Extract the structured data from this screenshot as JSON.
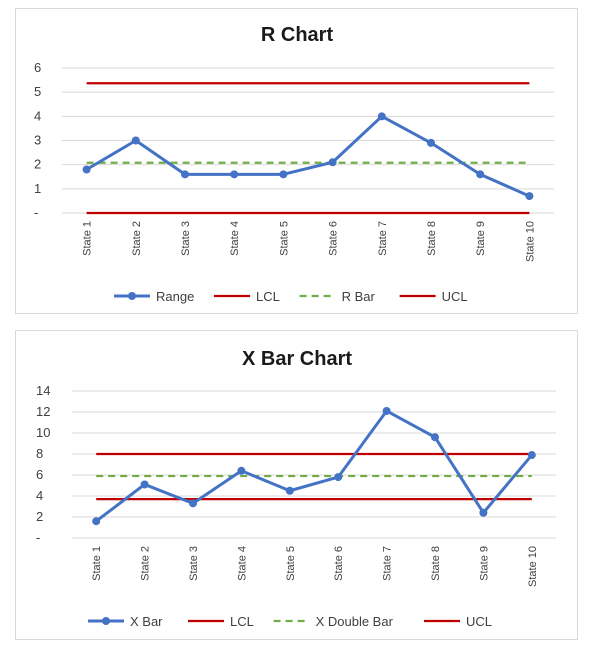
{
  "chart_data": [
    {
      "type": "line",
      "title": "R Chart",
      "categories": [
        "State 1",
        "State 2",
        "State 3",
        "State 4",
        "State 5",
        "State 6",
        "State 7",
        "State 8",
        "State 9",
        "State 10"
      ],
      "ylim": [
        0,
        6
      ],
      "yticks": [
        "-",
        "1",
        "2",
        "3",
        "4",
        "5",
        "6"
      ],
      "grid": true,
      "legend_position": "bottom",
      "series": [
        {
          "name": "Range",
          "values": [
            1.8,
            3.0,
            1.6,
            1.6,
            1.6,
            2.1,
            4.0,
            2.9,
            1.6,
            0.7
          ],
          "color": "#4472c4",
          "style": "solid-markers"
        },
        {
          "name": "LCL",
          "values": [
            0,
            0,
            0,
            0,
            0,
            0,
            0,
            0,
            0,
            0
          ],
          "color": "#c00000",
          "style": "solid"
        },
        {
          "name": "R Bar",
          "values": [
            2.08,
            2.08,
            2.08,
            2.08,
            2.08,
            2.08,
            2.08,
            2.08,
            2.08,
            2.08
          ],
          "color": "#70ad47",
          "style": "dashed"
        },
        {
          "name": "UCL",
          "values": [
            5.37,
            5.37,
            5.37,
            5.37,
            5.37,
            5.37,
            5.37,
            5.37,
            5.37,
            5.37
          ],
          "color": "#c00000",
          "style": "solid"
        }
      ]
    },
    {
      "type": "line",
      "title": "X Bar Chart",
      "categories": [
        "State 1",
        "State 2",
        "State 3",
        "State 4",
        "State 5",
        "State 6",
        "State 7",
        "State 8",
        "State 9",
        "State 10"
      ],
      "ylim": [
        0,
        14
      ],
      "yticks": [
        "-",
        "2",
        "4",
        "6",
        "8",
        "10",
        "12",
        "14"
      ],
      "grid": true,
      "legend_position": "bottom",
      "series": [
        {
          "name": "X Bar",
          "values": [
            1.6,
            5.1,
            3.3,
            6.4,
            4.5,
            5.8,
            12.1,
            9.6,
            2.4,
            7.9
          ],
          "color": "#4472c4",
          "style": "solid-markers"
        },
        {
          "name": "LCL",
          "values": [
            3.7,
            3.7,
            3.7,
            3.7,
            3.7,
            3.7,
            3.7,
            3.7,
            3.7,
            3.7
          ],
          "color": "#c00000",
          "style": "solid"
        },
        {
          "name": "X Double Bar",
          "values": [
            5.9,
            5.9,
            5.9,
            5.9,
            5.9,
            5.9,
            5.9,
            5.9,
            5.9,
            5.9
          ],
          "color": "#70ad47",
          "style": "dashed"
        },
        {
          "name": "UCL",
          "values": [
            8.0,
            8.0,
            8.0,
            8.0,
            8.0,
            8.0,
            8.0,
            8.0,
            8.0,
            8.0
          ],
          "color": "#c00000",
          "style": "solid"
        }
      ]
    }
  ]
}
